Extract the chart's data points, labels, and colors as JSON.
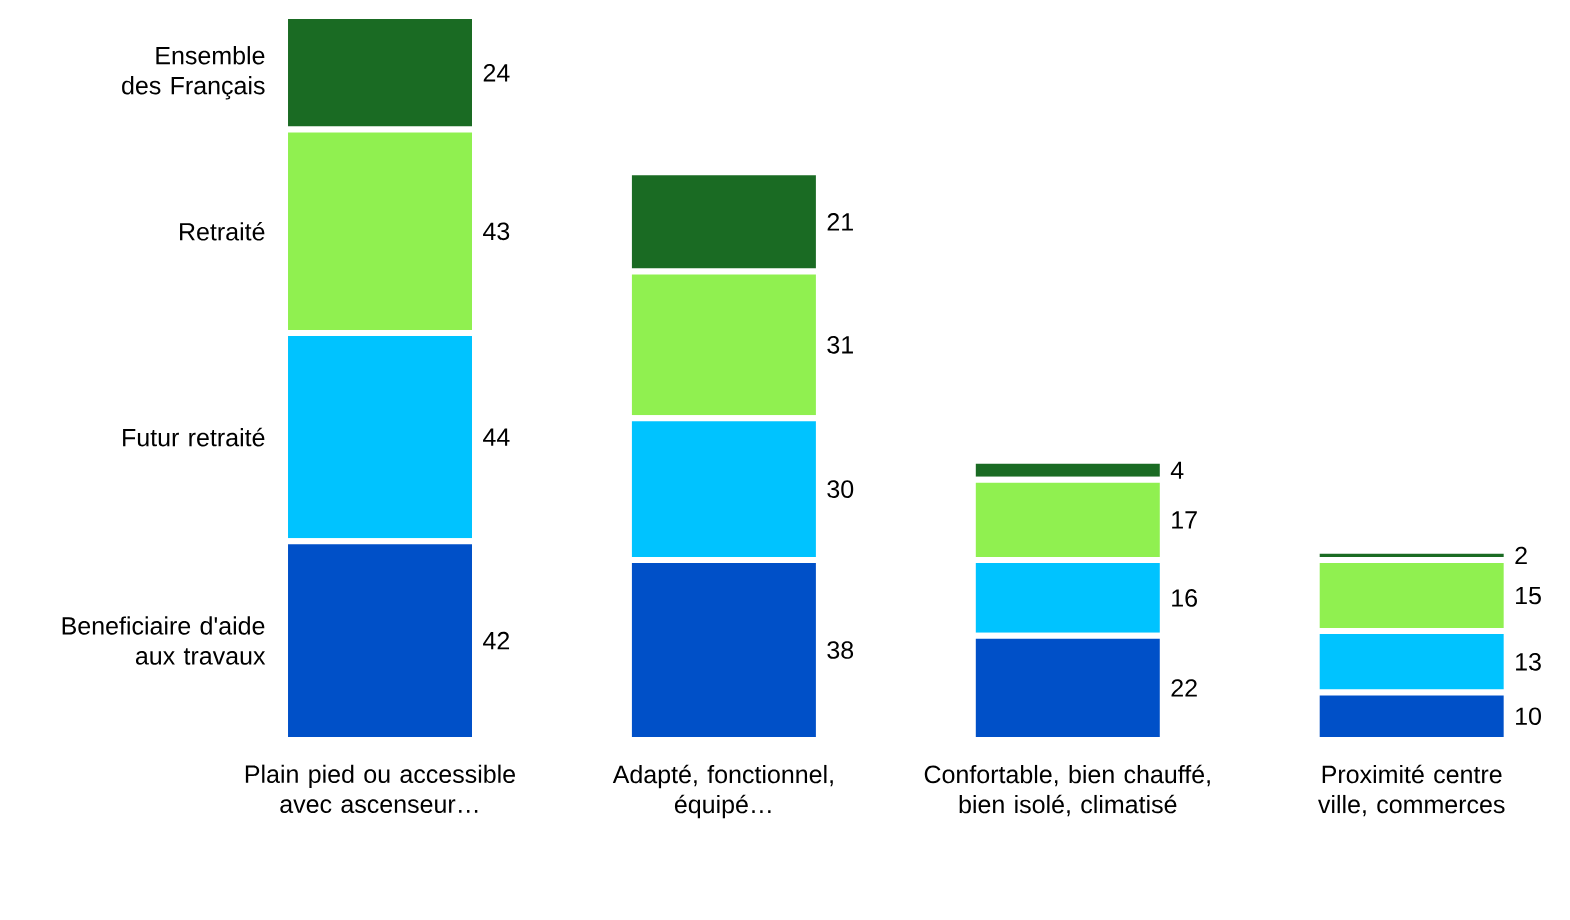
{
  "chart_data": {
    "type": "bar",
    "stacked": true,
    "data_labels": true,
    "categories": [
      "Plain pied ou accessible avec ascenseur…",
      "Adapté, fonctionnel, équipé…",
      "Confortable, bien chauffé, bien isolé, climatisé",
      "Proximité centre ville, commerces"
    ],
    "series": [
      {
        "name": "Beneficiaire d'aide aux travaux",
        "color": "#0050c8",
        "values": [
          42,
          38,
          22,
          10
        ]
      },
      {
        "name": "Futur retraité",
        "color": "#00c3ff",
        "values": [
          44,
          30,
          16,
          13
        ]
      },
      {
        "name": "Retraité",
        "color": "#90f050",
        "values": [
          43,
          31,
          17,
          15
        ]
      },
      {
        "name": "Ensemble des Français",
        "color": "#1a6b23",
        "values": [
          24,
          21,
          4,
          2
        ]
      }
    ]
  }
}
